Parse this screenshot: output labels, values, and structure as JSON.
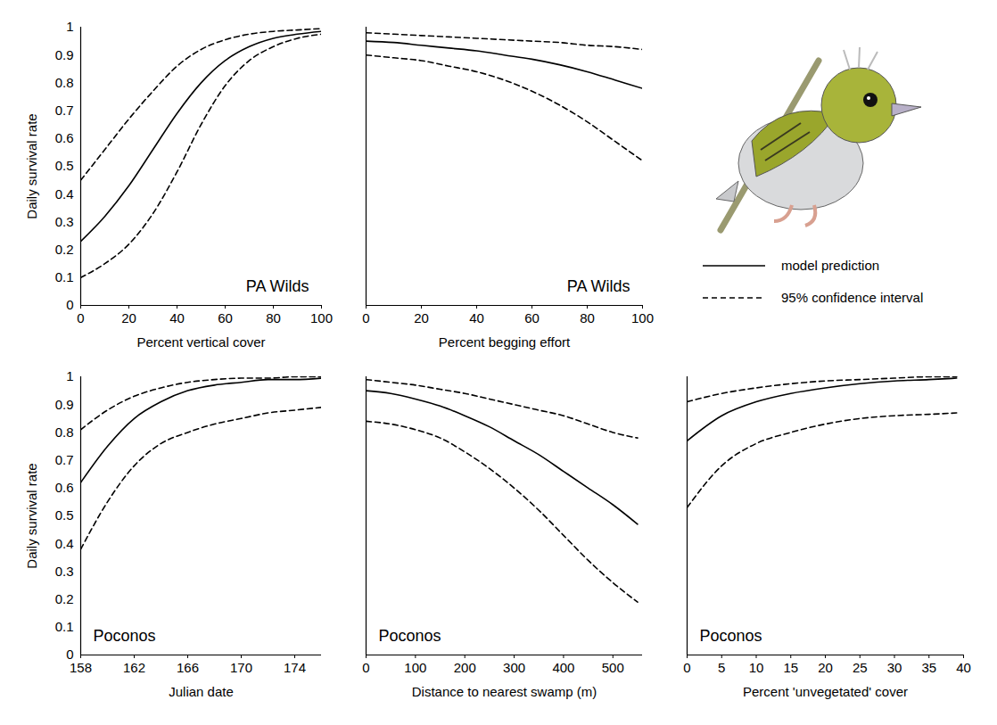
{
  "chart_data": [
    {
      "type": "line",
      "annotation": "PA Wilds",
      "xlabel": "Percent vertical cover",
      "ylabel": "Daily survival rate",
      "x": [
        0,
        10,
        20,
        30,
        40,
        50,
        60,
        70,
        80,
        90,
        100
      ],
      "xlim": [
        0,
        100
      ],
      "xticks": [
        0,
        20,
        40,
        60,
        80,
        100
      ],
      "ylim": [
        0,
        1
      ],
      "yticks": [
        0,
        0.1,
        0.2,
        0.3,
        0.4,
        0.5,
        0.6,
        0.7,
        0.8,
        0.9,
        1
      ],
      "series": [
        {
          "name": "model prediction",
          "color": "#000000",
          "line_style": "solid",
          "values": [
            0.23,
            0.32,
            0.43,
            0.56,
            0.69,
            0.8,
            0.88,
            0.93,
            0.96,
            0.975,
            0.985
          ]
        },
        {
          "name": "95% confidence interval",
          "color": "#000000",
          "line_style": "dashed",
          "lower": [
            0.1,
            0.15,
            0.22,
            0.33,
            0.48,
            0.65,
            0.79,
            0.88,
            0.93,
            0.96,
            0.975
          ],
          "upper": [
            0.45,
            0.56,
            0.67,
            0.77,
            0.86,
            0.92,
            0.955,
            0.975,
            0.985,
            0.99,
            0.995
          ]
        }
      ]
    },
    {
      "type": "line",
      "annotation": "PA Wilds",
      "xlabel": "Percent begging effort",
      "tick_labels": "x",
      "legend": "right",
      "x": [
        0,
        10,
        20,
        30,
        40,
        50,
        60,
        70,
        80,
        90,
        100
      ],
      "xlim": [
        0,
        100
      ],
      "xticks": [
        0,
        20,
        40,
        60,
        80,
        100
      ],
      "ylim": [
        0,
        1
      ],
      "yticks": [
        0,
        0.1,
        0.2,
        0.3,
        0.4,
        0.5,
        0.6,
        0.7,
        0.8,
        0.9,
        1
      ],
      "series": [
        {
          "name": "model prediction",
          "color": "#000000",
          "line_style": "solid",
          "values": [
            0.95,
            0.945,
            0.935,
            0.925,
            0.915,
            0.9,
            0.885,
            0.865,
            0.84,
            0.81,
            0.78
          ]
        },
        {
          "name": "95% confidence interval",
          "color": "#000000",
          "line_style": "dashed",
          "lower": [
            0.9,
            0.89,
            0.88,
            0.86,
            0.84,
            0.81,
            0.77,
            0.72,
            0.66,
            0.59,
            0.52
          ],
          "upper": [
            0.98,
            0.975,
            0.97,
            0.965,
            0.96,
            0.955,
            0.95,
            0.945,
            0.935,
            0.93,
            0.92
          ]
        }
      ]
    },
    {
      "type": "line",
      "annotation": "Poconos",
      "xlabel": "Julian date",
      "ylabel": "Daily survival rate",
      "x": [
        158,
        160,
        162,
        164,
        166,
        168,
        170,
        172,
        174,
        176
      ],
      "xlim": [
        158,
        176
      ],
      "xticks": [
        158,
        162,
        166,
        170,
        174
      ],
      "ylim": [
        0,
        1
      ],
      "yticks": [
        0,
        0.1,
        0.2,
        0.3,
        0.4,
        0.5,
        0.6,
        0.7,
        0.8,
        0.9,
        1
      ],
      "series": [
        {
          "name": "model prediction",
          "color": "#000000",
          "line_style": "solid",
          "values": [
            0.62,
            0.75,
            0.85,
            0.91,
            0.95,
            0.97,
            0.98,
            0.99,
            0.99,
            0.995
          ]
        },
        {
          "name": "95% confidence interval",
          "color": "#000000",
          "line_style": "dashed",
          "lower": [
            0.38,
            0.55,
            0.68,
            0.76,
            0.8,
            0.83,
            0.85,
            0.87,
            0.88,
            0.89
          ],
          "upper": [
            0.81,
            0.88,
            0.93,
            0.96,
            0.98,
            0.99,
            0.995,
            0.995,
            1.0,
            1.0
          ]
        }
      ]
    },
    {
      "type": "line",
      "annotation": "Poconos",
      "xlabel": "Distance to nearest swamp (m)",
      "tick_labels": "x",
      "x": [
        0,
        50,
        100,
        150,
        200,
        250,
        300,
        350,
        400,
        450,
        500,
        550
      ],
      "xlim": [
        0,
        560
      ],
      "xticks": [
        0,
        100,
        200,
        300,
        400,
        500
      ],
      "ylim": [
        0,
        1
      ],
      "yticks": [
        0,
        0.1,
        0.2,
        0.3,
        0.4,
        0.5,
        0.6,
        0.7,
        0.8,
        0.9,
        1
      ],
      "series": [
        {
          "name": "model prediction",
          "color": "#000000",
          "line_style": "solid",
          "values": [
            0.95,
            0.94,
            0.92,
            0.895,
            0.86,
            0.82,
            0.77,
            0.72,
            0.66,
            0.6,
            0.54,
            0.47
          ]
        },
        {
          "name": "95% confidence interval",
          "color": "#000000",
          "line_style": "dashed",
          "lower": [
            0.84,
            0.83,
            0.81,
            0.78,
            0.73,
            0.67,
            0.6,
            0.52,
            0.43,
            0.34,
            0.26,
            0.19
          ],
          "upper": [
            0.99,
            0.98,
            0.97,
            0.955,
            0.94,
            0.92,
            0.9,
            0.88,
            0.86,
            0.83,
            0.8,
            0.78
          ]
        }
      ]
    },
    {
      "type": "line",
      "annotation": "Poconos",
      "xlabel": "Percent 'unvegetated' cover",
      "tick_labels": "x",
      "x": [
        0,
        5,
        10,
        15,
        20,
        25,
        30,
        35,
        39
      ],
      "xlim": [
        0,
        40
      ],
      "xticks": [
        0,
        5,
        10,
        15,
        20,
        25,
        30,
        35,
        40
      ],
      "ylim": [
        0,
        1
      ],
      "yticks": [
        0,
        0.1,
        0.2,
        0.3,
        0.4,
        0.5,
        0.6,
        0.7,
        0.8,
        0.9,
        1
      ],
      "series": [
        {
          "name": "model prediction",
          "color": "#000000",
          "line_style": "solid",
          "values": [
            0.77,
            0.86,
            0.91,
            0.94,
            0.96,
            0.975,
            0.985,
            0.99,
            0.995
          ]
        },
        {
          "name": "95% confidence interval",
          "color": "#000000",
          "line_style": "dashed",
          "lower": [
            0.53,
            0.68,
            0.76,
            0.8,
            0.83,
            0.85,
            0.86,
            0.865,
            0.87
          ],
          "upper": [
            0.91,
            0.94,
            0.96,
            0.975,
            0.985,
            0.99,
            0.995,
            1.0,
            1.0
          ]
        }
      ]
    }
  ]
}
